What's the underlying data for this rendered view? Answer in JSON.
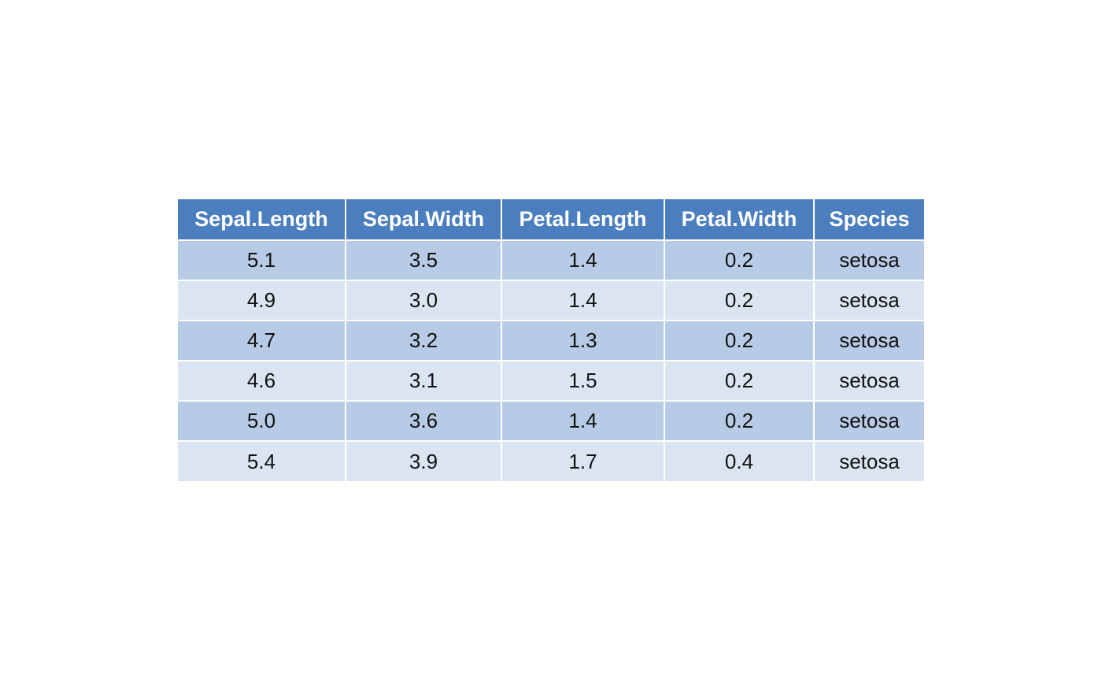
{
  "colors": {
    "header": "#4a7ebf",
    "row_dark": "#b7cae6",
    "row_light": "#dbe5f1",
    "grid": "#ffffff"
  },
  "chart_data": {
    "type": "table",
    "columns": [
      "Sepal.Length",
      "Sepal.Width",
      "Petal.Length",
      "Petal.Width",
      "Species"
    ],
    "rows": [
      [
        "5.1",
        "3.5",
        "1.4",
        "0.2",
        "setosa"
      ],
      [
        "4.9",
        "3.0",
        "1.4",
        "0.2",
        "setosa"
      ],
      [
        "4.7",
        "3.2",
        "1.3",
        "0.2",
        "setosa"
      ],
      [
        "4.6",
        "3.1",
        "1.5",
        "0.2",
        "setosa"
      ],
      [
        "5.0",
        "3.6",
        "1.4",
        "0.2",
        "setosa"
      ],
      [
        "5.4",
        "3.9",
        "1.7",
        "0.4",
        "setosa"
      ]
    ]
  }
}
